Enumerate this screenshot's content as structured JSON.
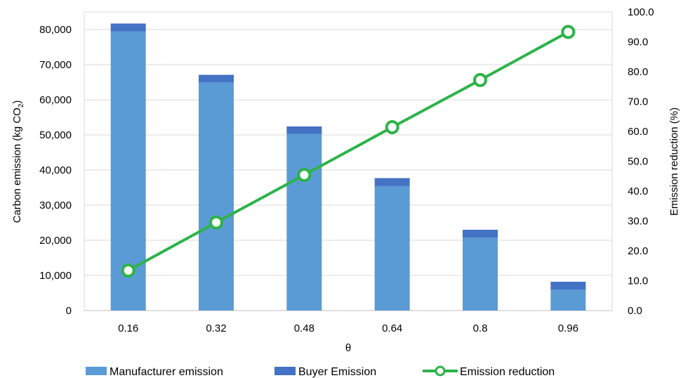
{
  "chart_data": {
    "type": "bar",
    "stacked": true,
    "categories": [
      "0.16",
      "0.32",
      "0.48",
      "0.64",
      "0.8",
      "0.96"
    ],
    "xlabel": "θ",
    "ylabel": "Carbon emission (kg CO",
    "ylabel_sub": "2",
    "ylabel_close": ")",
    "y2label": "Emission reduction (%)",
    "ylim": [
      0,
      85000
    ],
    "y2lim": [
      0,
      100
    ],
    "yticks": [
      "0",
      "10,000",
      "20,000",
      "30,000",
      "40,000",
      "50,000",
      "60,000",
      "70,000",
      "80,000"
    ],
    "y2ticks": [
      "0.0",
      "10.0",
      "20.0",
      "30.0",
      "40.0",
      "50.0",
      "60.0",
      "70.0",
      "80.0",
      "90.0",
      "100.0"
    ],
    "series": [
      {
        "name": "Manufacturer emission",
        "kind": "bar",
        "axis": "left",
        "color": "#5b9bd5",
        "values": [
          79500,
          65000,
          50300,
          35500,
          20800,
          6000
        ]
      },
      {
        "name": "Buyer Emission",
        "kind": "bar",
        "axis": "left",
        "color": "#4472c4",
        "values": [
          2200,
          2100,
          2100,
          2200,
          2200,
          2200
        ]
      },
      {
        "name": "Emission reduction",
        "kind": "line",
        "axis": "right",
        "color": "#2db34a",
        "values": [
          13.4,
          29.5,
          45.4,
          61.4,
          77.2,
          93.3
        ]
      }
    ],
    "legend": "bottom",
    "grid": true
  }
}
